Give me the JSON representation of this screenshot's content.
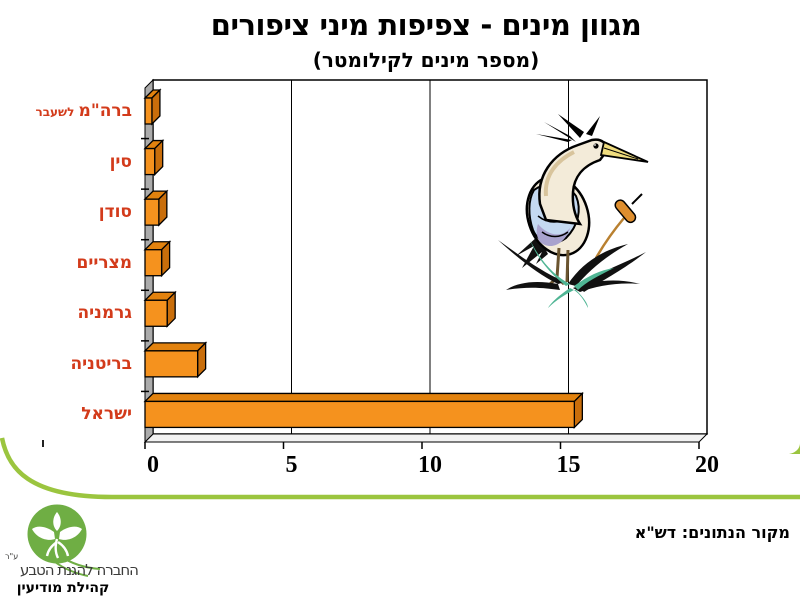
{
  "title": "מגוון מינים - צפיפות מיני ציפורים",
  "subtitle": "(מספר מינים לקילומטר)",
  "chart_data": {
    "type": "bar",
    "orientation": "horizontal",
    "title": "מגוון מינים - צפיפות מיני ציפורים",
    "subtitle": "(מספר מינים לקילומטר)",
    "categories": [
      "ברה\"מ לשעבר",
      "סין",
      "סודן",
      "מצריים",
      "גרמניה",
      "בריטניה",
      "ישראל"
    ],
    "label_parts": [
      [
        "ברה\"מ",
        "לשעבר"
      ],
      [
        "סין"
      ],
      [
        "סודן"
      ],
      [
        "מצריים"
      ],
      [
        "גרמניה"
      ],
      [
        "בריטניה"
      ],
      [
        "ישראל"
      ]
    ],
    "values": [
      0.25,
      0.35,
      0.5,
      0.6,
      0.8,
      1.9,
      15.5
    ],
    "xlim": [
      0,
      20
    ],
    "xticks": [
      0,
      5,
      10,
      15,
      20
    ],
    "xlabel": "",
    "ylabel": "",
    "grid": true,
    "style": "3d-horizontal-bars"
  },
  "source_note": "מקור הנתונים: דש\"א",
  "logo": {
    "org": "החברה להגנת הטבע",
    "reg": "ע\"ר",
    "community": "קהילת מודיעין"
  },
  "colors": {
    "bar_front": "#F5921E",
    "bar_top": "#E2820E",
    "bar_side": "#C96E0B",
    "bar_outline": "#000000",
    "category_label": "#D33B1B",
    "wall_gray": "#ABABAB",
    "floor_gray": "#F2F2F2",
    "swoosh_green": "#9BC53F",
    "logo_green": "#6FAE44",
    "text_dark": "#3B3B3A"
  }
}
